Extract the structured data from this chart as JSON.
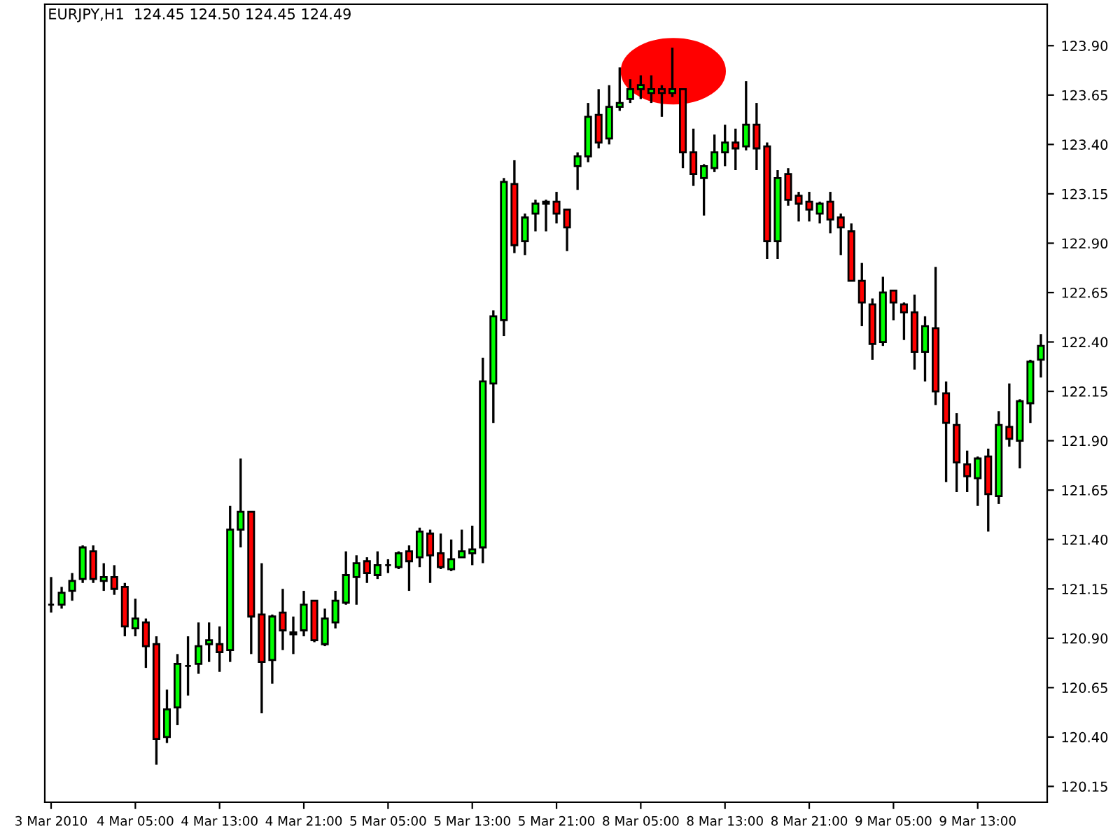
{
  "chart_data": {
    "type": "candlestick",
    "title": "EURJPY,H1  124.45 124.50 124.45 124.49",
    "categories": [
      "3 Mar 2010",
      null,
      null,
      null,
      null,
      null,
      null,
      null,
      "4 Mar 05:00",
      null,
      null,
      null,
      null,
      null,
      null,
      null,
      "4 Mar 13:00",
      null,
      null,
      null,
      null,
      null,
      null,
      null,
      "4 Mar 21:00",
      null,
      null,
      null,
      null,
      null,
      null,
      null,
      "5 Mar 05:00",
      null,
      null,
      null,
      null,
      null,
      null,
      null,
      "5 Mar 13:00",
      null,
      null,
      null,
      null,
      null,
      null,
      null,
      "5 Mar 21:00",
      null,
      null,
      null,
      null,
      null,
      null,
      null,
      "8 Mar 05:00",
      null,
      null,
      null,
      null,
      null,
      null,
      null,
      "8 Mar 13:00",
      null,
      null,
      null,
      null,
      null,
      null,
      null,
      "8 Mar 21:00",
      null,
      null,
      null,
      null,
      null,
      null,
      null,
      "9 Mar 05:00",
      null,
      null,
      null,
      null,
      null,
      null,
      null,
      "9 Mar 13:00",
      null,
      null,
      null,
      null,
      null,
      null
    ],
    "ohlc": [
      [
        121.07,
        121.21,
        121.03,
        121.07
      ],
      [
        121.07,
        121.16,
        121.05,
        121.13
      ],
      [
        121.14,
        121.23,
        121.09,
        121.19
      ],
      [
        121.2,
        121.37,
        121.18,
        121.36
      ],
      [
        121.34,
        121.37,
        121.18,
        121.2
      ],
      [
        121.19,
        121.28,
        121.14,
        121.21
      ],
      [
        121.21,
        121.27,
        121.12,
        121.15
      ],
      [
        121.16,
        121.18,
        120.91,
        120.96
      ],
      [
        120.95,
        121.1,
        120.91,
        121.0
      ],
      [
        120.98,
        121.0,
        120.75,
        120.86
      ],
      [
        120.87,
        120.91,
        120.26,
        120.39
      ],
      [
        120.4,
        120.64,
        120.37,
        120.54
      ],
      [
        120.55,
        120.82,
        120.46,
        120.77
      ],
      [
        120.76,
        120.91,
        120.61,
        120.76
      ],
      [
        120.77,
        120.98,
        120.72,
        120.86
      ],
      [
        120.87,
        120.98,
        120.78,
        120.89
      ],
      [
        120.87,
        120.96,
        120.73,
        120.83
      ],
      [
        120.84,
        121.57,
        120.78,
        121.45
      ],
      [
        121.45,
        121.81,
        121.36,
        121.54
      ],
      [
        121.54,
        121.54,
        120.82,
        121.01
      ],
      [
        121.02,
        121.28,
        120.52,
        120.78
      ],
      [
        120.79,
        121.02,
        120.67,
        121.01
      ],
      [
        121.03,
        121.15,
        120.84,
        120.94
      ],
      [
        120.92,
        121.01,
        120.82,
        120.93
      ],
      [
        120.94,
        121.14,
        120.91,
        121.07
      ],
      [
        121.09,
        121.09,
        120.88,
        120.89
      ],
      [
        120.87,
        121.05,
        120.86,
        121.0
      ],
      [
        120.98,
        121.14,
        120.95,
        121.09
      ],
      [
        121.08,
        121.34,
        121.07,
        121.22
      ],
      [
        121.21,
        121.32,
        121.07,
        121.28
      ],
      [
        121.29,
        121.31,
        121.18,
        121.23
      ],
      [
        121.22,
        121.34,
        121.2,
        121.27
      ],
      [
        121.27,
        121.3,
        121.23,
        121.27
      ],
      [
        121.26,
        121.34,
        121.25,
        121.33
      ],
      [
        121.34,
        121.37,
        121.14,
        121.29
      ],
      [
        121.31,
        121.46,
        121.26,
        121.44
      ],
      [
        121.43,
        121.45,
        121.18,
        121.32
      ],
      [
        121.33,
        121.43,
        121.25,
        121.26
      ],
      [
        121.25,
        121.4,
        121.24,
        121.3
      ],
      [
        121.31,
        121.45,
        121.31,
        121.34
      ],
      [
        121.33,
        121.47,
        121.27,
        121.35
      ],
      [
        121.36,
        122.32,
        121.28,
        122.2
      ],
      [
        122.19,
        122.56,
        121.99,
        122.53
      ],
      [
        122.51,
        123.23,
        122.43,
        123.21
      ],
      [
        123.2,
        123.32,
        122.85,
        122.89
      ],
      [
        122.91,
        123.05,
        122.84,
        123.03
      ],
      [
        123.05,
        123.12,
        122.96,
        123.1
      ],
      [
        123.11,
        123.12,
        122.96,
        123.1
      ],
      [
        123.11,
        123.16,
        123.0,
        123.05
      ],
      [
        123.07,
        123.07,
        122.86,
        122.98
      ],
      [
        123.29,
        123.36,
        123.17,
        123.34
      ],
      [
        123.34,
        123.61,
        123.31,
        123.54
      ],
      [
        123.55,
        123.68,
        123.38,
        123.41
      ],
      [
        123.43,
        123.7,
        123.4,
        123.59
      ],
      [
        123.59,
        123.79,
        123.57,
        123.61
      ],
      [
        123.63,
        123.73,
        123.61,
        123.68
      ],
      [
        123.68,
        123.75,
        123.63,
        123.7
      ],
      [
        123.66,
        123.75,
        123.61,
        123.68
      ],
      [
        123.68,
        123.7,
        123.54,
        123.66
      ],
      [
        123.66,
        123.89,
        123.64,
        123.68
      ],
      [
        123.68,
        123.68,
        123.28,
        123.36
      ],
      [
        123.36,
        123.48,
        123.19,
        123.25
      ],
      [
        123.23,
        123.3,
        123.04,
        123.29
      ],
      [
        123.28,
        123.45,
        123.26,
        123.36
      ],
      [
        123.36,
        123.5,
        123.29,
        123.41
      ],
      [
        123.41,
        123.48,
        123.27,
        123.38
      ],
      [
        123.39,
        123.72,
        123.37,
        123.5
      ],
      [
        123.5,
        123.61,
        123.27,
        123.38
      ],
      [
        123.39,
        123.41,
        122.82,
        122.91
      ],
      [
        122.91,
        123.27,
        122.82,
        123.23
      ],
      [
        123.25,
        123.28,
        123.09,
        123.12
      ],
      [
        123.14,
        123.16,
        123.01,
        123.1
      ],
      [
        123.11,
        123.16,
        123.01,
        123.07
      ],
      [
        123.05,
        123.11,
        123.0,
        123.1
      ],
      [
        123.11,
        123.16,
        122.95,
        123.02
      ],
      [
        123.03,
        123.05,
        122.84,
        122.98
      ],
      [
        122.96,
        123.0,
        122.71,
        122.71
      ],
      [
        122.71,
        122.8,
        122.48,
        122.6
      ],
      [
        122.59,
        122.62,
        122.31,
        122.39
      ],
      [
        122.4,
        122.73,
        122.38,
        122.65
      ],
      [
        122.66,
        122.66,
        122.51,
        122.6
      ],
      [
        122.59,
        122.6,
        122.41,
        122.55
      ],
      [
        122.55,
        122.64,
        122.26,
        122.35
      ],
      [
        122.35,
        122.53,
        122.2,
        122.48
      ],
      [
        122.47,
        122.78,
        122.08,
        122.15
      ],
      [
        122.14,
        122.2,
        121.69,
        121.99
      ],
      [
        121.98,
        122.04,
        121.64,
        121.79
      ],
      [
        121.78,
        121.85,
        121.64,
        121.72
      ],
      [
        121.71,
        121.82,
        121.57,
        121.81
      ],
      [
        121.82,
        121.86,
        121.44,
        121.63
      ],
      [
        121.62,
        122.05,
        121.58,
        121.98
      ],
      [
        121.97,
        122.19,
        121.87,
        121.91
      ],
      [
        121.9,
        122.11,
        121.76,
        122.1
      ],
      [
        122.09,
        122.31,
        121.99,
        122.3
      ],
      [
        122.31,
        122.44,
        122.22,
        122.38
      ]
    ],
    "colors": [
      "#000000",
      "#00ff00",
      "#00ff00",
      "#00ff00",
      "#ff0000",
      "#00ff00",
      "#ff0000",
      "#ff0000",
      "#00ff00",
      "#ff0000",
      "#ff0000",
      "#00ff00",
      "#00ff00",
      "#000000",
      "#00ff00",
      "#00ff00",
      "#ff0000",
      "#00ff00",
      "#00ff00",
      "#ff0000",
      "#ff0000",
      "#00ff00",
      "#ff0000",
      "#00ff00",
      "#00ff00",
      "#ff0000",
      "#00ff00",
      "#00ff00",
      "#00ff00",
      "#00ff00",
      "#ff0000",
      "#00ff00",
      "#000000",
      "#00ff00",
      "#ff0000",
      "#00ff00",
      "#ff0000",
      "#ff0000",
      "#00ff00",
      "#00ff00",
      "#00ff00",
      "#00ff00",
      "#00ff00",
      "#00ff00",
      "#ff0000",
      "#00ff00",
      "#00ff00",
      "#ff0000",
      "#ff0000",
      "#ff0000",
      "#00ff00",
      "#00ff00",
      "#ff0000",
      "#00ff00",
      "#00ff00",
      "#00ff00",
      "#00ff00",
      "#00ff00",
      "#ff0000",
      "#00ff00",
      "#ff0000",
      "#ff0000",
      "#00ff00",
      "#00ff00",
      "#00ff00",
      "#ff0000",
      "#00ff00",
      "#ff0000",
      "#ff0000",
      "#00ff00",
      "#ff0000",
      "#ff0000",
      "#ff0000",
      "#00ff00",
      "#ff0000",
      "#ff0000",
      "#ff0000",
      "#ff0000",
      "#ff0000",
      "#00ff00",
      "#ff0000",
      "#ff0000",
      "#ff0000",
      "#00ff00",
      "#ff0000",
      "#ff0000",
      "#ff0000",
      "#ff0000",
      "#00ff00",
      "#ff0000",
      "#00ff00",
      "#ff0000",
      "#00ff00",
      "#00ff00",
      "#00ff00"
    ],
    "ylim": [
      120.07,
      124.11
    ],
    "yticks": [
      120.15,
      {
        "value": 120.4,
        "label": "120.40"
      },
      120.65,
      {
        "value": 120.9,
        "label": "120.90"
      },
      121.15,
      {
        "value": 121.4,
        "label": "121.40"
      },
      121.65,
      {
        "value": 121.9,
        "label": "121.90"
      },
      122.15,
      {
        "value": 122.4,
        "label": "122.40"
      },
      122.65,
      {
        "value": 122.9,
        "label": "122.90"
      },
      123.15,
      {
        "value": 123.4,
        "label": "123.40"
      },
      123.65,
      {
        "value": 123.9,
        "label": "123.90"
      }
    ],
    "grid": false,
    "legend": false
  }
}
